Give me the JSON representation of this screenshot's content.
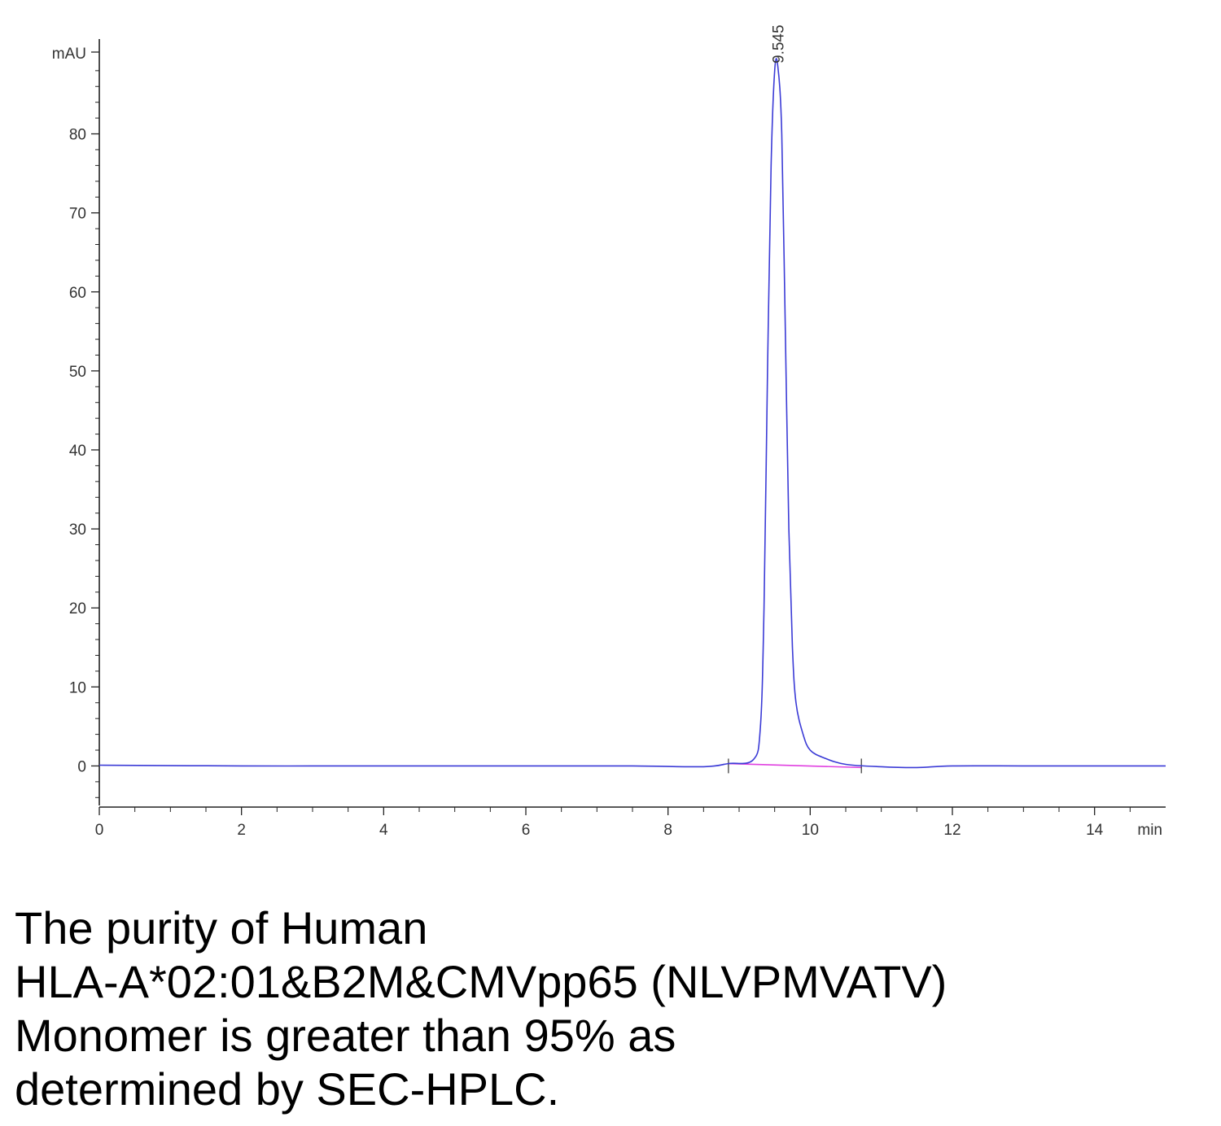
{
  "chart_data": {
    "type": "line",
    "title": "",
    "ylabel": "mAU",
    "xlabel": "min",
    "xlim": [
      0,
      15
    ],
    "ylim": [
      -5,
      92
    ],
    "x_ticks": [
      0,
      2,
      4,
      6,
      8,
      10,
      12,
      14
    ],
    "y_ticks": [
      0,
      10,
      20,
      30,
      40,
      50,
      60,
      70,
      80
    ],
    "grid": false,
    "series": [
      {
        "color": "#3b3bd6",
        "x": [
          0,
          2,
          4,
          6,
          7.5,
          8.5,
          8.85,
          9.2,
          9.3,
          9.35,
          9.4,
          9.45,
          9.5,
          9.545,
          9.6,
          9.65,
          9.7,
          9.75,
          9.8,
          9.9,
          10.0,
          10.2,
          10.5,
          11.0,
          11.5,
          12.0,
          13.0,
          14.0,
          15.0
        ],
        "y": [
          0.1,
          0,
          0,
          0,
          0,
          -0.1,
          0.3,
          0.8,
          5,
          20,
          50,
          76,
          88,
          88.5,
          80,
          55,
          30,
          15,
          8,
          4,
          2,
          1,
          0.2,
          -0.1,
          -0.2,
          0,
          0,
          0,
          0
        ]
      }
    ],
    "baseline": {
      "color": "#e040e0",
      "x": [
        8.85,
        10.72
      ],
      "y": [
        0.3,
        -0.2
      ]
    },
    "baseline_markers_x": [
      8.85,
      10.72
    ],
    "peak_label": {
      "text": "9.545",
      "x": 9.545,
      "y": 88.5
    }
  },
  "caption_lines": [
    "The purity of Human",
    "HLA-A*02:01&B2M&CMVpp65 (NLVPMVATV)",
    "Monomer is greater than 95% as",
    "determined by SEC-HPLC."
  ]
}
